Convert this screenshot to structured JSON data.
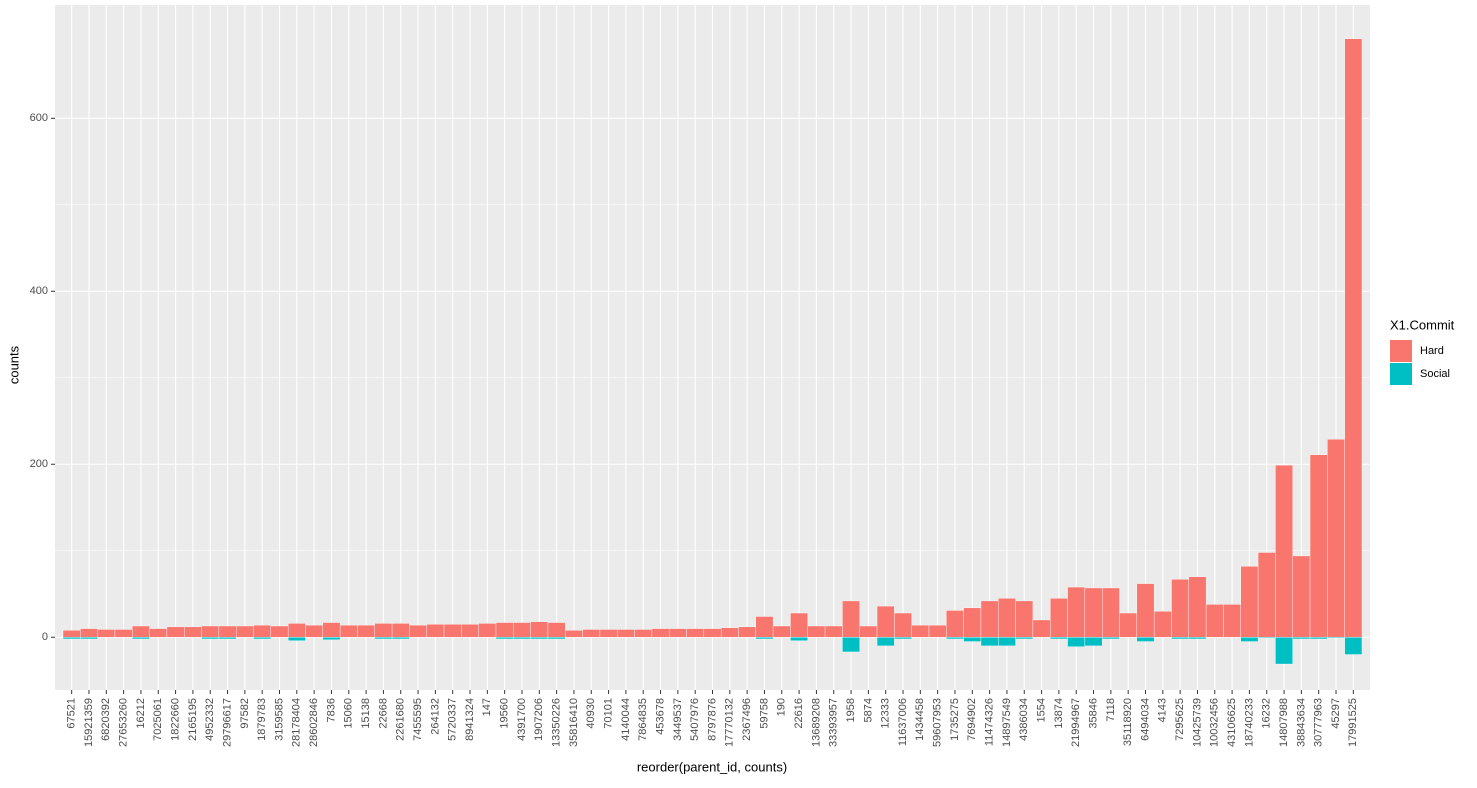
{
  "chart_data": {
    "type": "bar",
    "x_label": "reorder(parent_id, counts)",
    "y_label": "counts",
    "legend_title": "X1.Commit",
    "categories": [
      "67521",
      "15921359",
      "6820392",
      "27653260",
      "16212",
      "7025061",
      "1822660",
      "2165195",
      "4952332",
      "29796617",
      "97582",
      "1879783",
      "3159585",
      "28178404",
      "28602846",
      "7836",
      "15060",
      "15138",
      "22668",
      "2261680",
      "7455595",
      "264132",
      "5720337",
      "8941324",
      "147",
      "19560",
      "4391700",
      "1907206",
      "13350226",
      "35816410",
      "40930",
      "70101",
      "4140044",
      "7864835",
      "453678",
      "3449537",
      "5407976",
      "8797876",
      "17770132",
      "2367496",
      "59758",
      "190",
      "22616",
      "13689208",
      "33393957",
      "1958",
      "5874",
      "12333",
      "11637006",
      "1434458",
      "59607953",
      "1735275",
      "7694902",
      "11474326",
      "14897549",
      "4386034",
      "1554",
      "13874",
      "21994967",
      "35846",
      "7118",
      "35118920",
      "6494034",
      "4143",
      "7295625",
      "10425739",
      "10032456",
      "43106625",
      "18740233",
      "16232",
      "14807988",
      "38843634",
      "30777963",
      "45297",
      "17991525"
    ],
    "series": [
      {
        "name": "Hard",
        "color": "#F8766D",
        "values": [
          8,
          10,
          9,
          9,
          13,
          10,
          12,
          12,
          13,
          13,
          13,
          14,
          13,
          16,
          14,
          17,
          14,
          14,
          16,
          16,
          14,
          15,
          15,
          15,
          16,
          17,
          17,
          18,
          17,
          8,
          9,
          9,
          9,
          9,
          10,
          10,
          10,
          10,
          11,
          12,
          24,
          13,
          28,
          13,
          13,
          42,
          13,
          36,
          28,
          14,
          14,
          31,
          34,
          42,
          45,
          42,
          20,
          45,
          58,
          57,
          57,
          28,
          62,
          30,
          67,
          70,
          38,
          38,
          82,
          98,
          199,
          94,
          211,
          229,
          692
        ]
      },
      {
        "name": "Social",
        "color": "#00BFC4",
        "values": [
          -2,
          -2,
          0,
          0,
          -2,
          0,
          0,
          0,
          -2,
          -2,
          0,
          -2,
          0,
          -4,
          0,
          -3,
          0,
          0,
          -2,
          -2,
          0,
          0,
          0,
          0,
          0,
          -2,
          -2,
          -2,
          -2,
          0,
          0,
          0,
          0,
          0,
          0,
          0,
          0,
          0,
          0,
          0,
          -2,
          0,
          -4,
          0,
          0,
          -17,
          0,
          -10,
          -2,
          0,
          0,
          -2,
          -5,
          -10,
          -10,
          -2,
          0,
          -2,
          -11,
          -10,
          -2,
          0,
          -5,
          0,
          -2,
          -2,
          0,
          0,
          -5,
          -1,
          -31,
          -2,
          -2,
          -1,
          -20
        ]
      }
    ],
    "ylim": [
      -61,
      731
    ],
    "yticks": [
      0,
      200,
      400,
      600
    ],
    "grid": true,
    "legend": "right"
  }
}
